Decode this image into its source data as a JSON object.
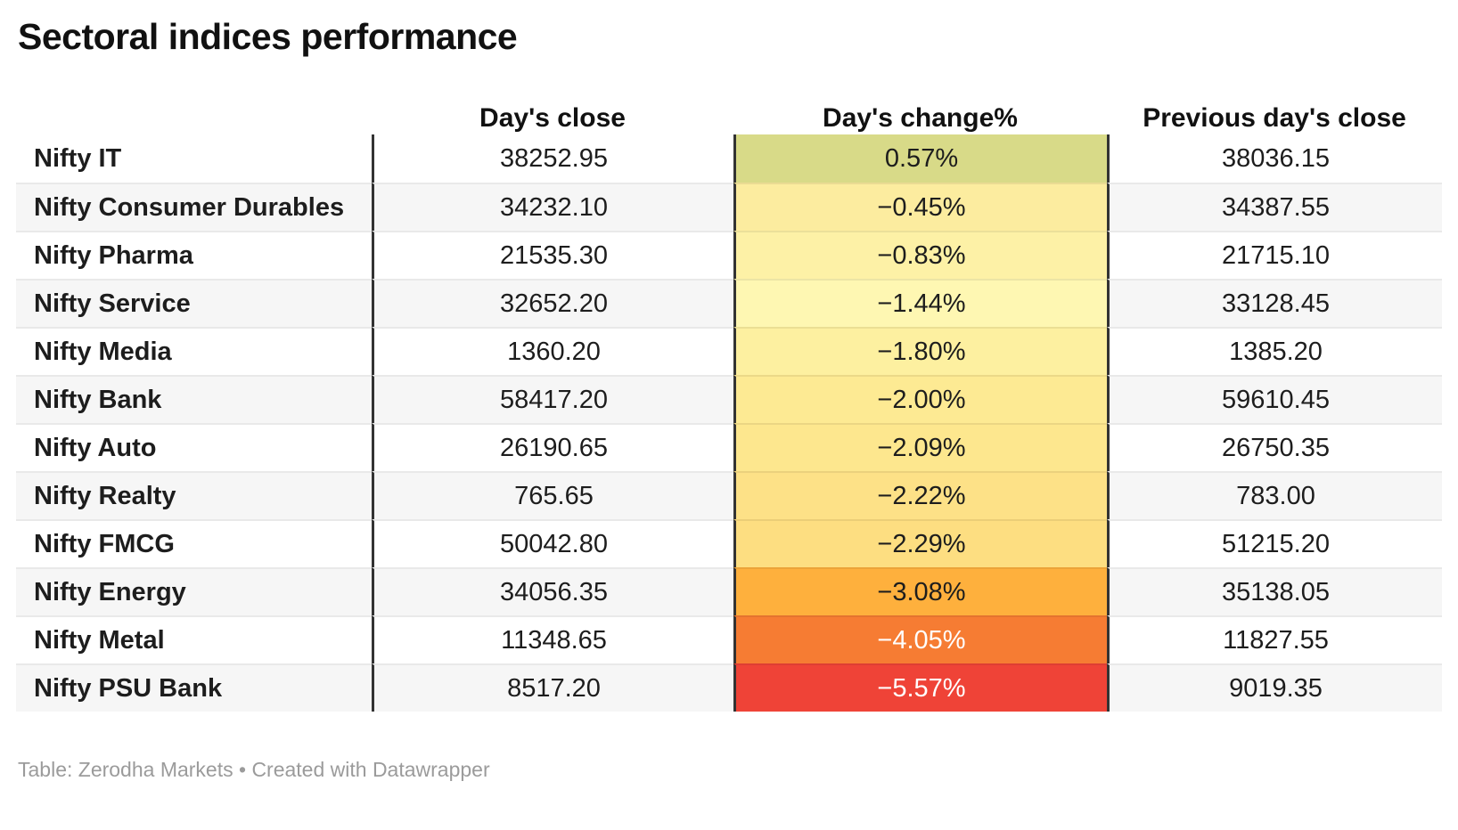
{
  "title": "Sectoral indices performance",
  "table": {
    "headers": {
      "index": "",
      "close": "Day's close",
      "change": "Day's change%",
      "prev": "Previous day's close"
    },
    "rows": [
      {
        "name": "Nifty IT",
        "close": "38252.95",
        "change": "0.57%",
        "prev": "38036.15",
        "change_bg": "#d8da88",
        "change_fg": "#1d1d1d"
      },
      {
        "name": "Nifty Consumer Durables",
        "close": "34232.10",
        "change": "−0.45%",
        "prev": "34387.55",
        "change_bg": "#fcec9f",
        "change_fg": "#1d1d1d"
      },
      {
        "name": "Nifty Pharma",
        "close": "21535.30",
        "change": "−0.83%",
        "prev": "21715.10",
        "change_bg": "#fdf1a6",
        "change_fg": "#1d1d1d"
      },
      {
        "name": "Nifty Service",
        "close": "32652.20",
        "change": "−1.44%",
        "prev": "33128.45",
        "change_bg": "#fef7b2",
        "change_fg": "#1d1d1d"
      },
      {
        "name": "Nifty Media",
        "close": "1360.20",
        "change": "−1.80%",
        "prev": "1385.20",
        "change_bg": "#fdf0a0",
        "change_fg": "#1d1d1d"
      },
      {
        "name": "Nifty Bank",
        "close": "58417.20",
        "change": "−2.00%",
        "prev": "59610.45",
        "change_bg": "#fdea93",
        "change_fg": "#1d1d1d"
      },
      {
        "name": "Nifty Auto",
        "close": "26190.65",
        "change": "−2.09%",
        "prev": "26750.35",
        "change_bg": "#fde78e",
        "change_fg": "#1d1d1d"
      },
      {
        "name": "Nifty Realty",
        "close": "765.65",
        "change": "−2.22%",
        "prev": "783.00",
        "change_bg": "#fde187",
        "change_fg": "#1d1d1d"
      },
      {
        "name": "Nifty FMCG",
        "close": "50042.80",
        "change": "−2.29%",
        "prev": "51215.20",
        "change_bg": "#fdde81",
        "change_fg": "#1d1d1d"
      },
      {
        "name": "Nifty Energy",
        "close": "34056.35",
        "change": "−3.08%",
        "prev": "35138.05",
        "change_bg": "#feb03d",
        "change_fg": "#1d1d1d"
      },
      {
        "name": "Nifty Metal",
        "close": "11348.65",
        "change": "−4.05%",
        "prev": "11827.55",
        "change_bg": "#f67c33",
        "change_fg": "#ffffff"
      },
      {
        "name": "Nifty PSU Bank",
        "close": "8517.20",
        "change": "−5.57%",
        "prev": "9019.35",
        "change_bg": "#ef4337",
        "change_fg": "#ffffff"
      }
    ]
  },
  "footer": {
    "text": "Table: Zerodha Markets • Created with Datawrapper"
  },
  "colors": {
    "header_rule": "#333333",
    "row_alt_bg": "#f6f6f6",
    "row_separator": "#e9e9e9",
    "footer_text": "#9b9b9b",
    "title_text": "#111111"
  },
  "chart_data": {
    "type": "table",
    "title": "Sectoral indices performance",
    "columns": [
      "",
      "Day's close",
      "Day's change%",
      "Previous day's close"
    ],
    "rows": [
      {
        "index": "Nifty IT",
        "days_close": 38252.95,
        "days_change_pct": 0.57,
        "previous_days_close": 38036.15
      },
      {
        "index": "Nifty Consumer Durables",
        "days_close": 34232.1,
        "days_change_pct": -0.45,
        "previous_days_close": 34387.55
      },
      {
        "index": "Nifty Pharma",
        "days_close": 21535.3,
        "days_change_pct": -0.83,
        "previous_days_close": 21715.1
      },
      {
        "index": "Nifty Service",
        "days_close": 32652.2,
        "days_change_pct": -1.44,
        "previous_days_close": 33128.45
      },
      {
        "index": "Nifty Media",
        "days_close": 1360.2,
        "days_change_pct": -1.8,
        "previous_days_close": 1385.2
      },
      {
        "index": "Nifty Bank",
        "days_close": 58417.2,
        "days_change_pct": -2.0,
        "previous_days_close": 59610.45
      },
      {
        "index": "Nifty Auto",
        "days_close": 26190.65,
        "days_change_pct": -2.09,
        "previous_days_close": 26750.35
      },
      {
        "index": "Nifty Realty",
        "days_close": 765.65,
        "days_change_pct": -2.22,
        "previous_days_close": 783.0
      },
      {
        "index": "Nifty FMCG",
        "days_close": 50042.8,
        "days_change_pct": -2.29,
        "previous_days_close": 51215.2
      },
      {
        "index": "Nifty Energy",
        "days_close": 34056.35,
        "days_change_pct": -3.08,
        "previous_days_close": 35138.05
      },
      {
        "index": "Nifty Metal",
        "days_close": 11348.65,
        "days_change_pct": -4.05,
        "previous_days_close": 11827.55
      },
      {
        "index": "Nifty PSU Bank",
        "days_close": 8517.2,
        "days_change_pct": -5.57,
        "previous_days_close": 9019.35
      }
    ],
    "heatmap_column": "Day's change%",
    "heatmap_scale": "diverging green-yellow-orange-red",
    "legend_position": "none",
    "grid": "horizontal separators + dark column rules"
  }
}
